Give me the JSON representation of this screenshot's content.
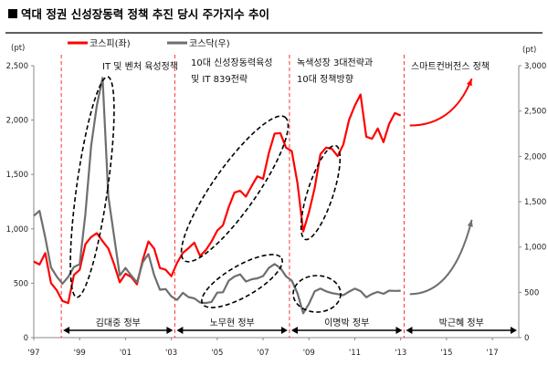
{
  "chart_data": {
    "type": "line",
    "title": "■ 역대 정권 신성장동력 정책 추진 당시 주가지수 추이",
    "left_unit": "(pt)",
    "right_unit": "(pt)",
    "x_ticks": [
      "'97",
      "'99",
      "'01",
      "'03",
      "'05",
      "'07",
      "'09",
      "'11",
      "'13",
      "'15",
      "'17"
    ],
    "x_tick_years": [
      1997,
      1999,
      2001,
      2003,
      2005,
      2007,
      2009,
      2011,
      2013,
      2015,
      2017
    ],
    "xlim": [
      1997,
      2018.15
    ],
    "left_ylim": [
      0,
      2500
    ],
    "left_ticks": [
      "0",
      "500",
      "1,000",
      "1,500",
      "2,000",
      "2,500"
    ],
    "left_tick_values": [
      0,
      500,
      1000,
      1500,
      2000,
      2500
    ],
    "right_ylim": [
      0,
      3000
    ],
    "right_ticks": [
      "0",
      "500",
      "1,000",
      "1,500",
      "2,000",
      "2,500",
      "3,000"
    ],
    "right_tick_values": [
      0,
      500,
      1000,
      1500,
      2000,
      2500,
      3000
    ],
    "series": [
      {
        "name": "코스피(좌)",
        "axis": "left",
        "color": "#ff0000",
        "x_start": 1997,
        "step": 0.25,
        "values": [
          700,
          650,
          750,
          500,
          450,
          350,
          320,
          560,
          600,
          850,
          950,
          1000,
          900,
          800,
          650,
          500,
          600,
          580,
          500,
          700,
          850,
          800,
          650,
          650,
          580,
          680,
          750,
          800,
          880,
          780,
          830,
          880,
          950,
          1000,
          1200,
          1380,
          1400,
          1300,
          1350,
          1430,
          1450,
          1750,
          1950,
          1900,
          1700,
          1650,
          1400,
          1000,
          1200,
          1400,
          1650,
          1680,
          1700,
          1700,
          1850,
          2050,
          2100,
          2150,
          1800,
          1850,
          2000,
          1850,
          1950,
          1990,
          1980
        ]
      },
      {
        "name": "코스닥(우)",
        "axis": "right",
        "color": "#6e6e6e",
        "x_start": 1997,
        "step": 0.25,
        "values": [
          1300,
          1350,
          1100,
          800,
          700,
          600,
          650,
          750,
          800,
          1400,
          2200,
          2600,
          2800,
          1500,
          1100,
          700,
          800,
          700,
          600,
          800,
          900,
          700,
          550,
          550,
          450,
          400,
          480,
          450,
          450,
          400,
          380,
          380,
          480,
          500,
          650,
          700,
          700,
          600,
          620,
          650,
          700,
          800,
          820,
          750,
          650,
          620,
          500,
          280,
          380,
          500,
          520,
          500,
          500,
          500,
          480,
          500,
          520,
          500,
          450,
          500,
          520,
          480,
          500,
          500,
          520
        ]
      }
    ],
    "projections": [
      {
        "series": "코스피(좌)",
        "axis": "left",
        "from": [
          2013.4,
          1950
        ],
        "to": [
          2016.1,
          2380
        ]
      },
      {
        "series": "코스닥(우)",
        "axis": "right",
        "from": [
          2013.4,
          480
        ],
        "to": [
          2016.1,
          1300
        ]
      }
    ],
    "regime_dividers": [
      1998.2,
      2003.15,
      2008.15,
      2013.15
    ],
    "governments": [
      {
        "label": "김대중 정부",
        "from": 1998.2,
        "to": 2003.15
      },
      {
        "label": "노무현 정부",
        "from": 2003.15,
        "to": 2008.15
      },
      {
        "label": "이명박 정부",
        "from": 2008.15,
        "to": 2013.15
      },
      {
        "label": "박근혜 정부",
        "from": 2013.15,
        "to": 2018.15
      }
    ],
    "policies": [
      {
        "lines": [
          "IT 및 벤처  육성정책"
        ]
      },
      {
        "lines": [
          "10대 신성장동력육성",
          "및  IT 839전략"
        ]
      },
      {
        "lines": [
          "녹색성장 3대전략과",
          "10대 정책방향"
        ]
      },
      {
        "lines": [
          "스마트컨버전스 정책"
        ]
      }
    ],
    "legend_placement": "top-left"
  }
}
